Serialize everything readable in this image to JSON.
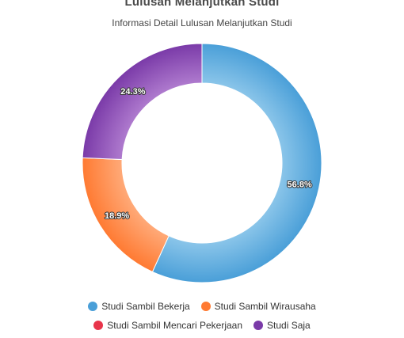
{
  "chart_data": {
    "type": "pie",
    "title": "Lulusan Melanjutkan Studi",
    "subtitle": "Informasi Detail Lulusan Melanjutkan Studi",
    "legend_position": "bottom",
    "series": [
      {
        "name": "Studi Sambil Bekerja",
        "value": 56.8,
        "label": "56.8%",
        "color": "#4a9fd8",
        "color_light": "#8cc6ea"
      },
      {
        "name": "Studi Sambil Wirausaha",
        "value": 18.9,
        "label": "18.9%",
        "color": "#ff7a32",
        "color_light": "#ffab7a"
      },
      {
        "name": "Studi Sambil Mencari Pekerjaan",
        "value": 0,
        "label": "",
        "color": "#e8344a",
        "color_light": "#f27a88"
      },
      {
        "name": "Studi Saja",
        "value": 24.3,
        "label": "24.3%",
        "color": "#7a3aa8",
        "color_light": "#b07ccf"
      }
    ]
  }
}
